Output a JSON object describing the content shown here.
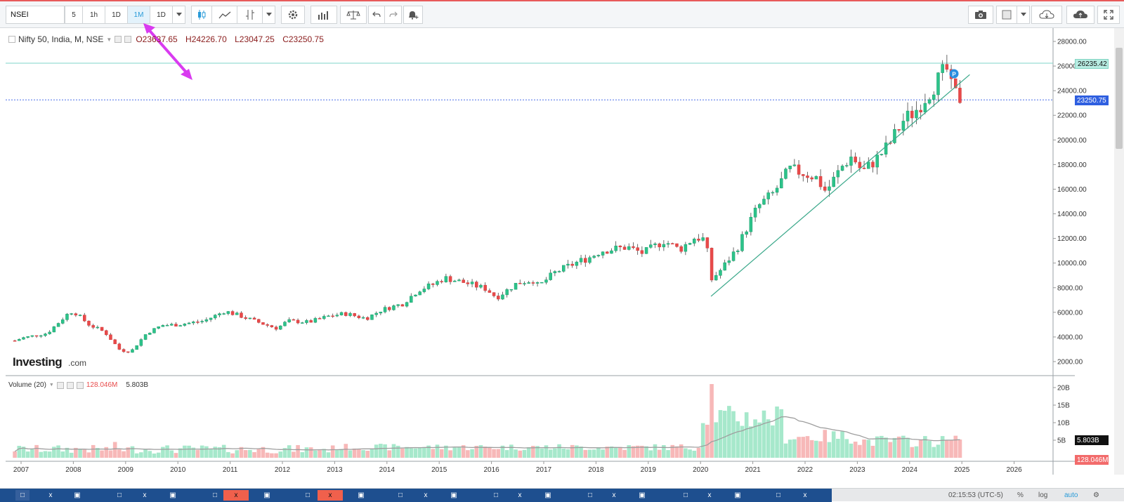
{
  "toolbar": {
    "symbol": "NSEI",
    "intervals": [
      "5",
      "1h",
      "1D",
      "1M",
      "1D"
    ],
    "active_interval": "1M"
  },
  "legend": {
    "title": "Nifty 50, India, M, NSE",
    "open": "O23637.65",
    "high": "H24226.70",
    "low": "L23047.25",
    "close": "C23250.75"
  },
  "volume_legend": {
    "title": "Volume (20)",
    "value1": "128.046M",
    "value2": "5.803B"
  },
  "price_labels": {
    "high_line": "26235.42",
    "last_price": "23250.75",
    "vol_ma": "5.803B",
    "vol_last": "128.046M"
  },
  "branding": {
    "logo_bold": "Investing",
    "logo_suffix": ".com"
  },
  "colors": {
    "up": "#1fb37a",
    "up_fill": "#2dc38a",
    "down": "#e84a4a",
    "trend": "#3aa88a",
    "arrow": "#d93bf0",
    "accent": "#2a9bd8"
  },
  "chart_data": {
    "type": "candlestick",
    "title": "Nifty 50, India, M, NSE",
    "y_ticks": [
      "28000.00",
      "26000.00",
      "24000.00",
      "22000.00",
      "20000.00",
      "18000.00",
      "16000.00",
      "14000.00",
      "12000.00",
      "10000.00",
      "8000.00",
      "6000.00",
      "4000.00",
      "2000.00"
    ],
    "x_ticks": [
      "2007",
      "2008",
      "2009",
      "2010",
      "2011",
      "2012",
      "2013",
      "2014",
      "2015",
      "2016",
      "2017",
      "2018",
      "2019",
      "2020",
      "2021",
      "2022",
      "2023",
      "2024",
      "2025",
      "2026"
    ],
    "ylim": [
      1000,
      29000
    ],
    "key_levels": {
      "horizontal_high": 26235.42,
      "last_close": 23250.75
    },
    "monthly_close_path": [
      [
        2006.9,
        3700
      ],
      [
        2007.0,
        3900
      ],
      [
        2007.5,
        4300
      ],
      [
        2007.9,
        5900
      ],
      [
        2008.0,
        6100
      ],
      [
        2008.3,
        5000
      ],
      [
        2008.6,
        4400
      ],
      [
        2008.9,
        2900
      ],
      [
        2009.1,
        2800
      ],
      [
        2009.4,
        4300
      ],
      [
        2009.7,
        4950
      ],
      [
        2010.0,
        5000
      ],
      [
        2010.5,
        5300
      ],
      [
        2010.9,
        6100
      ],
      [
        2011.2,
        5700
      ],
      [
        2011.6,
        5100
      ],
      [
        2011.9,
        4700
      ],
      [
        2012.1,
        5300
      ],
      [
        2012.5,
        5200
      ],
      [
        2012.9,
        5700
      ],
      [
        2013.2,
        5900
      ],
      [
        2013.6,
        5500
      ],
      [
        2013.9,
        6200
      ],
      [
        2014.3,
        6700
      ],
      [
        2014.6,
        7800
      ],
      [
        2014.9,
        8300
      ],
      [
        2015.1,
        8800
      ],
      [
        2015.5,
        8400
      ],
      [
        2015.9,
        7900
      ],
      [
        2016.1,
        7200
      ],
      [
        2016.5,
        8400
      ],
      [
        2016.8,
        8600
      ],
      [
        2016.9,
        8100
      ],
      [
        2017.2,
        9200
      ],
      [
        2017.6,
        10000
      ],
      [
        2017.9,
        10500
      ],
      [
        2018.1,
        11000
      ],
      [
        2018.6,
        11300
      ],
      [
        2018.9,
        10800
      ],
      [
        2019.3,
        11800
      ],
      [
        2019.6,
        11100
      ],
      [
        2019.9,
        12100
      ],
      [
        2020.1,
        11900
      ],
      [
        2020.2,
        8600
      ],
      [
        2020.4,
        9500
      ],
      [
        2020.7,
        11200
      ],
      [
        2020.9,
        13000
      ],
      [
        2021.1,
        14600
      ],
      [
        2021.4,
        15700
      ],
      [
        2021.7,
        17600
      ],
      [
        2021.9,
        17400
      ],
      [
        2022.2,
        17000
      ],
      [
        2022.4,
        15800
      ],
      [
        2022.7,
        17800
      ],
      [
        2022.9,
        18700
      ],
      [
        2023.1,
        17400
      ],
      [
        2023.4,
        18600
      ],
      [
        2023.6,
        19600
      ],
      [
        2023.9,
        21700
      ],
      [
        2024.1,
        22300
      ],
      [
        2024.4,
        24000
      ],
      [
        2024.6,
        25200
      ],
      [
        2024.7,
        25900
      ],
      [
        2024.8,
        24200
      ],
      [
        2024.9,
        23600
      ],
      [
        2025.0,
        23250
      ]
    ],
    "volume_axis_ticks": [
      "20B",
      "15B",
      "10B",
      "5B"
    ],
    "volume": {
      "ma_period": 20,
      "last_ma": "5.803B",
      "last_volume": "128.046M"
    }
  }
}
